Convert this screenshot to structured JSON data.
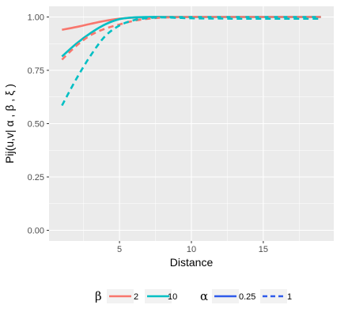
{
  "chart_data": {
    "type": "line",
    "title": "",
    "xlabel": "Distance",
    "ylabel": "Pij(u,v| α , β , ξ )",
    "xlim": [
      1,
      19
    ],
    "ylim": [
      0,
      1
    ],
    "x_ticks": [
      5,
      10,
      15
    ],
    "y_ticks": [
      0,
      0.25,
      0.5,
      0.75,
      1
    ],
    "x_tick_labels": [
      "5",
      "10",
      "15"
    ],
    "y_tick_labels": [
      "0.00",
      "0.25",
      "0.50",
      "0.75",
      "1.00"
    ],
    "grid": true,
    "legend_position": "bottom",
    "legend": [
      {
        "title": "β",
        "aesthetic": "color",
        "entries": [
          {
            "label": "2",
            "color": "#F8766D"
          },
          {
            "label": "10",
            "color": "#00BFC4"
          }
        ]
      },
      {
        "title": "α",
        "aesthetic": "linetype",
        "entries": [
          {
            "label": "0.25",
            "dash": "solid",
            "color": "#2F5BEA"
          },
          {
            "label": "1",
            "dash": "dashed",
            "color": "#2F5BEA"
          }
        ]
      }
    ],
    "x": [
      1,
      2,
      3,
      4,
      5,
      6,
      7,
      8,
      9,
      10,
      11,
      12,
      13,
      14,
      15,
      16,
      17,
      18,
      19
    ],
    "series": [
      {
        "beta": "2",
        "alpha": "0.25",
        "color": "#F8766D",
        "dash": "solid",
        "values": [
          0.94,
          0.953,
          0.968,
          0.982,
          0.992,
          0.997,
          0.999,
          1.0,
          1.0,
          1.0,
          1.0,
          1.0,
          1.0,
          1.0,
          1.0,
          1.0,
          1.0,
          1.0,
          1.0
        ]
      },
      {
        "beta": "10",
        "alpha": "0.25",
        "color": "#00BFC4",
        "dash": "solid",
        "values": [
          0.815,
          0.875,
          0.925,
          0.965,
          0.99,
          0.998,
          1.0,
          1.0,
          1.0,
          1.0,
          1.0,
          1.0,
          1.0,
          1.0,
          1.0,
          1.0,
          1.0,
          1.0,
          1.0
        ]
      },
      {
        "beta": "2",
        "alpha": "1",
        "color": "#F8766D",
        "dash": "dashed",
        "values": [
          0.8,
          0.865,
          0.915,
          0.945,
          0.965,
          0.982,
          0.992,
          0.997,
          0.999,
          1.0,
          1.0,
          1.0,
          1.0,
          1.0,
          1.0,
          1.0,
          1.0,
          1.0,
          1.0
        ]
      },
      {
        "beta": "10",
        "alpha": "1",
        "color": "#00BFC4",
        "dash": "dashed",
        "values": [
          0.585,
          0.71,
          0.82,
          0.91,
          0.96,
          0.985,
          0.995,
          0.998,
          0.996,
          0.994,
          0.993,
          0.993,
          0.992,
          0.992,
          0.992,
          0.992,
          0.992,
          0.992,
          0.992
        ]
      }
    ]
  },
  "colors": {
    "panel_background": "#EBEBEB",
    "grid_major": "#FFFFFF",
    "tick_text": "#4D4D4D",
    "axis_title": "#000000"
  }
}
